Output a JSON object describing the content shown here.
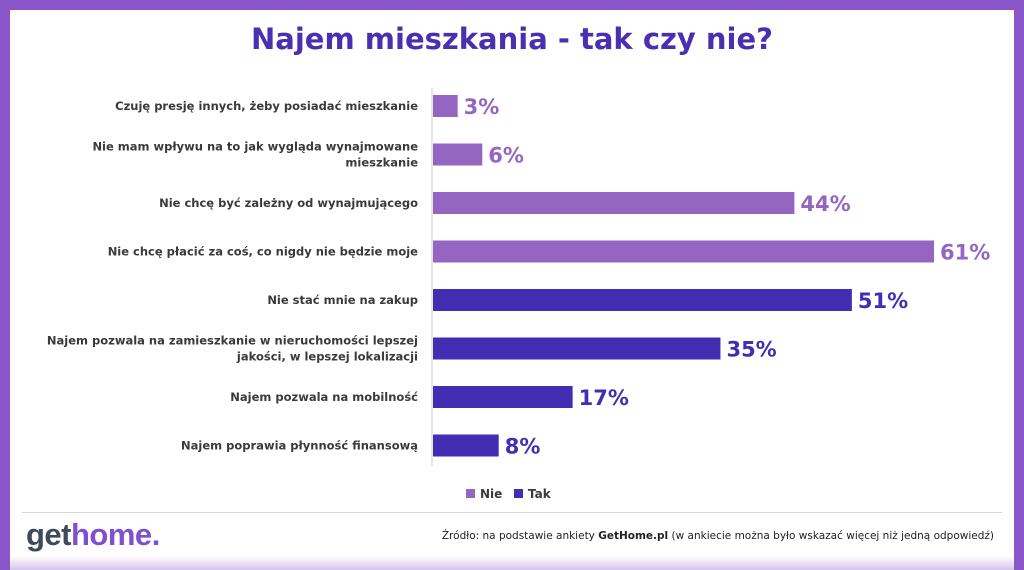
{
  "title": "Najem mieszkania - tak czy nie?",
  "chart_data": {
    "type": "bar",
    "orientation": "horizontal",
    "xlim": [
      0,
      61
    ],
    "grid": false,
    "legend_position": "bottom-center",
    "categories": [
      {
        "label": [
          "Czuję presję innych, żeby posiadać mieszkanie"
        ],
        "value": 3,
        "display": "3%",
        "series": "Nie"
      },
      {
        "label": [
          "Nie mam wpływu na to jak wygląda wynajmowane",
          "mieszkanie"
        ],
        "value": 6,
        "display": "6%",
        "series": "Nie"
      },
      {
        "label": [
          "Nie chcę być zależny od wynajmującego"
        ],
        "value": 44,
        "display": "44%",
        "series": "Nie"
      },
      {
        "label": [
          "Nie chcę płacić za coś, co nigdy nie będzie moje"
        ],
        "value": 61,
        "display": "61%",
        "series": "Nie"
      },
      {
        "label": [
          "Nie stać mnie na zakup"
        ],
        "value": 51,
        "display": "51%",
        "series": "Tak"
      },
      {
        "label": [
          "Najem pozwala na zamieszkanie w nieruchomości lepszej",
          "jakości, w lepszej lokalizacji"
        ],
        "value": 35,
        "display": "35%",
        "series": "Tak"
      },
      {
        "label": [
          "Najem pozwala na mobilność"
        ],
        "value": 17,
        "display": "17%",
        "series": "Tak"
      },
      {
        "label": [
          "Najem poprawia płynność finansową"
        ],
        "value": 8,
        "display": "8%",
        "series": "Tak"
      }
    ],
    "series": [
      {
        "name": "Nie",
        "color": "#9466c2"
      },
      {
        "name": "Tak",
        "color": "#432db3"
      }
    ]
  },
  "footer": {
    "logo_part1": "get",
    "logo_part2": "home",
    "logo_part3": ".",
    "source_prefix": "Źródło: na podstawie ankiety ",
    "source_brand": "GetHome.pl",
    "source_suffix": " (w ankiecie można było wskazać więcej niż jedną odpowiedź)"
  }
}
